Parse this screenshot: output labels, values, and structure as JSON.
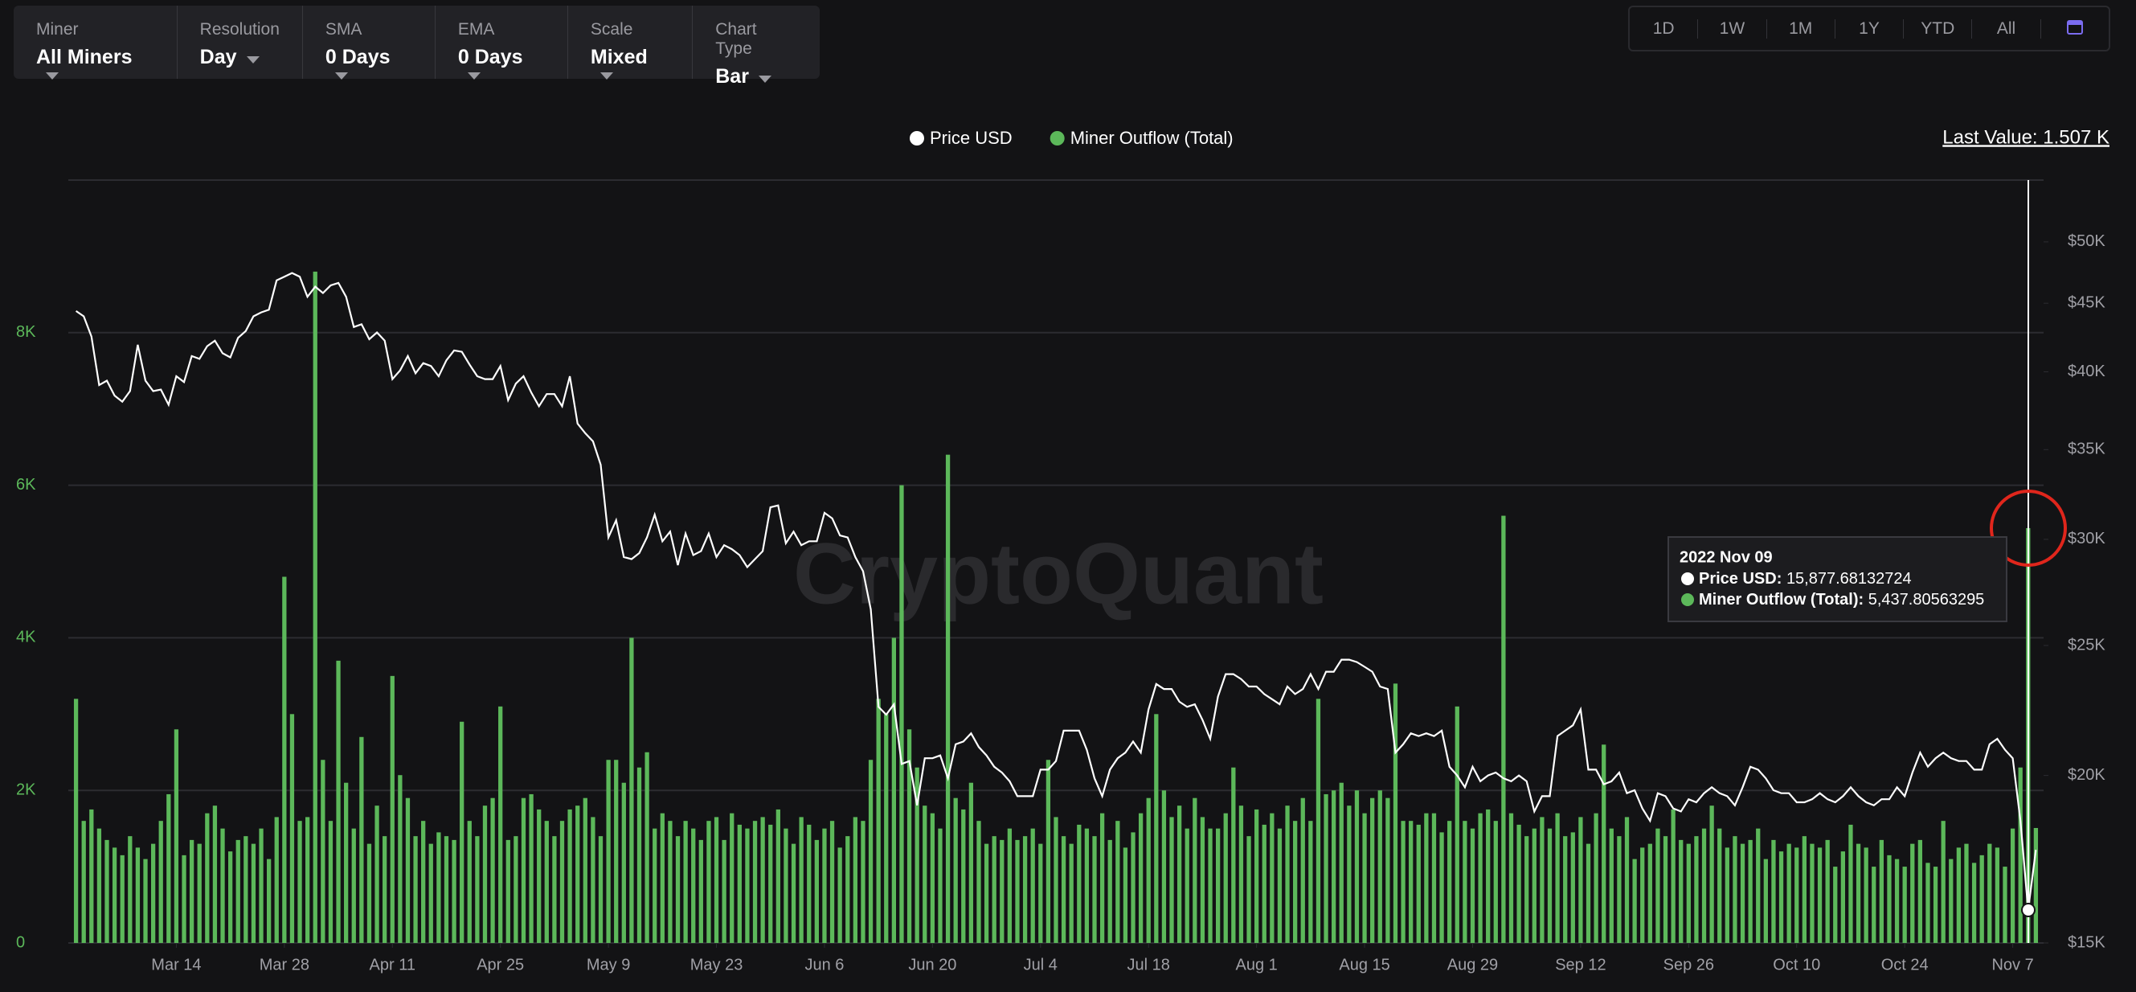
{
  "toolbar": {
    "controls": [
      {
        "label": "Miner",
        "value": "All Miners"
      },
      {
        "label": "Resolution",
        "value": "Day"
      },
      {
        "label": "SMA",
        "value": "0 Days"
      },
      {
        "label": "EMA",
        "value": "0 Days"
      },
      {
        "label": "Scale",
        "value": "Mixed"
      },
      {
        "label": "Chart Type",
        "value": "Bar"
      }
    ],
    "ranges": [
      "1D",
      "1W",
      "1M",
      "1Y",
      "YTD",
      "All"
    ]
  },
  "chart_data": {
    "type": "bar",
    "watermark": "CryptoQuant",
    "last_value": "Last Value: 1.507 K",
    "tooltip": {
      "date": "2022 Nov 09",
      "rows": [
        {
          "label": "Price USD:",
          "value": "15,877.68132724"
        },
        {
          "label": "Miner Outflow (Total):",
          "value": "5,437.80563295"
        }
      ]
    },
    "x": [
      "2022-03-01",
      "2022-03-02",
      "2022-03-03",
      "2022-03-04",
      "2022-03-05",
      "2022-03-06",
      "2022-03-07",
      "2022-03-08",
      "2022-03-09",
      "2022-03-10",
      "2022-03-11",
      "2022-03-12",
      "2022-03-13",
      "2022-03-14",
      "2022-03-15",
      "2022-03-16",
      "2022-03-17",
      "2022-03-18",
      "2022-03-19",
      "2022-03-20",
      "2022-03-21",
      "2022-03-22",
      "2022-03-23",
      "2022-03-24",
      "2022-03-25",
      "2022-03-26",
      "2022-03-27",
      "2022-03-28",
      "2022-03-29",
      "2022-03-30",
      "2022-03-31",
      "2022-04-01",
      "2022-04-02",
      "2022-04-03",
      "2022-04-04",
      "2022-04-05",
      "2022-04-06",
      "2022-04-07",
      "2022-04-08",
      "2022-04-09",
      "2022-04-10",
      "2022-04-11",
      "2022-04-12",
      "2022-04-13",
      "2022-04-14",
      "2022-04-15",
      "2022-04-16",
      "2022-04-17",
      "2022-04-18",
      "2022-04-19",
      "2022-04-20",
      "2022-04-21",
      "2022-04-22",
      "2022-04-23",
      "2022-04-24",
      "2022-04-25",
      "2022-04-26",
      "2022-04-27",
      "2022-04-28",
      "2022-04-29",
      "2022-04-30",
      "2022-05-01",
      "2022-05-02",
      "2022-05-03",
      "2022-05-04",
      "2022-05-05",
      "2022-05-06",
      "2022-05-07",
      "2022-05-08",
      "2022-05-09",
      "2022-05-10",
      "2022-05-11",
      "2022-05-12",
      "2022-05-13",
      "2022-05-14",
      "2022-05-15",
      "2022-05-16",
      "2022-05-17",
      "2022-05-18",
      "2022-05-19",
      "2022-05-20",
      "2022-05-21",
      "2022-05-22",
      "2022-05-23",
      "2022-05-24",
      "2022-05-25",
      "2022-05-26",
      "2022-05-27",
      "2022-05-28",
      "2022-05-29",
      "2022-05-30",
      "2022-05-31",
      "2022-06-01",
      "2022-06-02",
      "2022-06-03",
      "2022-06-04",
      "2022-06-05",
      "2022-06-06",
      "2022-06-07",
      "2022-06-08",
      "2022-06-09",
      "2022-06-10",
      "2022-06-11",
      "2022-06-12",
      "2022-06-13",
      "2022-06-14",
      "2022-06-15",
      "2022-06-16",
      "2022-06-17",
      "2022-06-18",
      "2022-06-19",
      "2022-06-20",
      "2022-06-21",
      "2022-06-22",
      "2022-06-23",
      "2022-06-24",
      "2022-06-25",
      "2022-06-26",
      "2022-06-27",
      "2022-06-28",
      "2022-06-29",
      "2022-06-30",
      "2022-07-01",
      "2022-07-02",
      "2022-07-03",
      "2022-07-04",
      "2022-07-05",
      "2022-07-06",
      "2022-07-07",
      "2022-07-08",
      "2022-07-09",
      "2022-07-10",
      "2022-07-11",
      "2022-07-12",
      "2022-07-13",
      "2022-07-14",
      "2022-07-15",
      "2022-07-16",
      "2022-07-17",
      "2022-07-18",
      "2022-07-19",
      "2022-07-20",
      "2022-07-21",
      "2022-07-22",
      "2022-07-23",
      "2022-07-24",
      "2022-07-25",
      "2022-07-26",
      "2022-07-27",
      "2022-07-28",
      "2022-07-29",
      "2022-07-30",
      "2022-07-31",
      "2022-08-01",
      "2022-08-02",
      "2022-08-03",
      "2022-08-04",
      "2022-08-05",
      "2022-08-06",
      "2022-08-07",
      "2022-08-08",
      "2022-08-09",
      "2022-08-10",
      "2022-08-11",
      "2022-08-12",
      "2022-08-13",
      "2022-08-14",
      "2022-08-15",
      "2022-08-16",
      "2022-08-17",
      "2022-08-18",
      "2022-08-19",
      "2022-08-20",
      "2022-08-21",
      "2022-08-22",
      "2022-08-23",
      "2022-08-24",
      "2022-08-25",
      "2022-08-26",
      "2022-08-27",
      "2022-08-28",
      "2022-08-29",
      "2022-08-30",
      "2022-08-31",
      "2022-09-01",
      "2022-09-02",
      "2022-09-03",
      "2022-09-04",
      "2022-09-05",
      "2022-09-06",
      "2022-09-07",
      "2022-09-08",
      "2022-09-09",
      "2022-09-10",
      "2022-09-11",
      "2022-09-12",
      "2022-09-13",
      "2022-09-14",
      "2022-09-15",
      "2022-09-16",
      "2022-09-17",
      "2022-09-18",
      "2022-09-19",
      "2022-09-20",
      "2022-09-21",
      "2022-09-22",
      "2022-09-23",
      "2022-09-24",
      "2022-09-25",
      "2022-09-26",
      "2022-09-27",
      "2022-09-28",
      "2022-09-29",
      "2022-09-30",
      "2022-10-01",
      "2022-10-02",
      "2022-10-03",
      "2022-10-04",
      "2022-10-05",
      "2022-10-06",
      "2022-10-07",
      "2022-10-08",
      "2022-10-09",
      "2022-10-10",
      "2022-10-11",
      "2022-10-12",
      "2022-10-13",
      "2022-10-14",
      "2022-10-15",
      "2022-10-16",
      "2022-10-17",
      "2022-10-18",
      "2022-10-19",
      "2022-10-20",
      "2022-10-21",
      "2022-10-22",
      "2022-10-23",
      "2022-10-24",
      "2022-10-25",
      "2022-10-26",
      "2022-10-27",
      "2022-10-28",
      "2022-10-29",
      "2022-10-30",
      "2022-10-31",
      "2022-11-01",
      "2022-11-02",
      "2022-11-03",
      "2022-11-04",
      "2022-11-05",
      "2022-11-06",
      "2022-11-07",
      "2022-11-08",
      "2022-11-09",
      "2022-11-10"
    ],
    "series": [
      {
        "name": "Price USD",
        "type": "line",
        "axis": "y2",
        "color": "#ffffff",
        "values": [
          44400,
          44000,
          42500,
          39100,
          39400,
          38400,
          38000,
          38700,
          41900,
          39400,
          38700,
          38800,
          37800,
          39700,
          39300,
          41100,
          40900,
          41800,
          42200,
          41300,
          41000,
          42400,
          42900,
          44000,
          44300,
          44500,
          46800,
          47100,
          47400,
          47100,
          45500,
          46300,
          45800,
          46400,
          46600,
          45500,
          43200,
          43400,
          42300,
          42800,
          42200,
          39500,
          40100,
          41100,
          39900,
          40600,
          40400,
          39700,
          40800,
          41500,
          41400,
          40500,
          39700,
          39500,
          39500,
          40400,
          38100,
          39200,
          39700,
          38600,
          37700,
          38500,
          38500,
          37700,
          39700,
          36600,
          36000,
          35500,
          34100,
          30100,
          31000,
          29100,
          29000,
          29300,
          30100,
          31300,
          29900,
          30400,
          28700,
          30300,
          29200,
          29400,
          30300,
          29100,
          29700,
          29500,
          29200,
          28600,
          29000,
          29400,
          31700,
          31800,
          29800,
          30400,
          29700,
          29900,
          29900,
          31400,
          31100,
          30200,
          30100,
          29100,
          28400,
          26600,
          22500,
          22200,
          22600,
          20400,
          20500,
          19000,
          20600,
          20600,
          20700,
          19900,
          21100,
          21200,
          21500,
          21000,
          20700,
          20300,
          20100,
          19800,
          19300,
          19300,
          19300,
          20200,
          20200,
          20500,
          21600,
          21600,
          21600,
          20900,
          19900,
          19300,
          20200,
          20600,
          20800,
          21200,
          20800,
          22400,
          23400,
          23200,
          23200,
          22700,
          22500,
          22600,
          22000,
          21300,
          22900,
          23800,
          23800,
          23600,
          23300,
          23300,
          23000,
          22800,
          22600,
          23300,
          23000,
          23200,
          23800,
          23200,
          23900,
          23900,
          24400,
          24400,
          24300,
          24100,
          23900,
          23300,
          23200,
          20800,
          21100,
          21500,
          21400,
          21500,
          21400,
          21600,
          20300,
          20000,
          19600,
          20300,
          19800,
          20000,
          20100,
          19900,
          19800,
          20000,
          19800,
          18800,
          19300,
          19300,
          21400,
          21600,
          21800,
          22400,
          20200,
          20200,
          19700,
          19800,
          20100,
          19400,
          19500,
          18900,
          18500,
          19400,
          19300,
          18900,
          18800,
          19200,
          19100,
          19400,
          19600,
          19400,
          19300,
          19000,
          19600,
          20300,
          20200,
          19900,
          19500,
          19400,
          19400,
          19100,
          19100,
          19200,
          19400,
          19200,
          19100,
          19300,
          19600,
          19300,
          19100,
          19000,
          19200,
          19200,
          19600,
          19300,
          20100,
          20800,
          20300,
          20600,
          20800,
          20600,
          20500,
          20500,
          20200,
          20200,
          21100,
          21300,
          20900,
          20600,
          18500,
          15877.68132724,
          17600
        ]
      },
      {
        "name": "Miner Outflow (Total)",
        "type": "bar",
        "color": "#5cb85a",
        "values": [
          3200,
          1600,
          1750,
          1500,
          1350,
          1250,
          1150,
          1400,
          1250,
          1100,
          1300,
          1600,
          1950,
          2800,
          1150,
          1350,
          1300,
          1700,
          1800,
          1500,
          1200,
          1350,
          1400,
          1300,
          1500,
          1100,
          1650,
          4800,
          3000,
          1600,
          1650,
          8800,
          2400,
          1600,
          3700,
          2100,
          1500,
          2700,
          1300,
          1800,
          1400,
          3500,
          2200,
          1900,
          1400,
          1600,
          1300,
          1450,
          1400,
          1350,
          2900,
          1600,
          1400,
          1800,
          1900,
          3100,
          1350,
          1400,
          1900,
          1950,
          1750,
          1600,
          1400,
          1600,
          1750,
          1800,
          1900,
          1650,
          1400,
          2400,
          2400,
          2100,
          4000,
          2300,
          2500,
          1500,
          1700,
          1600,
          1400,
          1600,
          1500,
          1350,
          1600,
          1650,
          1350,
          1700,
          1550,
          1500,
          1600,
          1650,
          1550,
          1750,
          1500,
          1300,
          1650,
          1550,
          1350,
          1500,
          1600,
          1250,
          1400,
          1650,
          1600,
          2400,
          3200,
          3000,
          4000,
          6000,
          2800,
          2300,
          1800,
          1700,
          1500,
          6400,
          1900,
          1750,
          2100,
          1600,
          1300,
          1400,
          1350,
          1500,
          1350,
          1400,
          1500,
          1300,
          2400,
          1650,
          1400,
          1300,
          1550,
          1500,
          1400,
          1700,
          1350,
          1600,
          1250,
          1450,
          1700,
          1900,
          3000,
          2000,
          1650,
          1800,
          1500,
          1900,
          1650,
          1500,
          1500,
          1700,
          2300,
          1800,
          1400,
          1750,
          1550,
          1700,
          1500,
          1800,
          1600,
          1900,
          1600,
          3200,
          1950,
          2000,
          2100,
          1800,
          2000,
          1700,
          1900,
          2000,
          1900,
          3400,
          1600,
          1600,
          1550,
          1700,
          1700,
          1450,
          1600,
          3100,
          1600,
          1500,
          1700,
          1750,
          1600,
          5600,
          1700,
          1550,
          1400,
          1500,
          1650,
          1500,
          1700,
          1400,
          1450,
          1650,
          1300,
          1700,
          2600,
          1500,
          1400,
          1650,
          1100,
          1250,
          1300,
          1500,
          1400,
          1750,
          1350,
          1300,
          1400,
          1500,
          1800,
          1500,
          1250,
          1400,
          1300,
          1350,
          1500,
          1100,
          1350,
          1200,
          1300,
          1250,
          1400,
          1300,
          1250,
          1350,
          1000,
          1200,
          1550,
          1300,
          1250,
          1000,
          1350,
          1150,
          1100,
          1000,
          1300,
          1350,
          1050,
          1000,
          1600,
          1100,
          1250,
          1300,
          1050,
          1150,
          1300,
          1250,
          1000,
          1500,
          2300,
          5437.80563295,
          1507
        ]
      }
    ],
    "xlim": [
      "2022-02-28",
      "2022-11-11"
    ],
    "xticks": [
      {
        "value": "2022-03-14",
        "label": "Mar 14"
      },
      {
        "value": "2022-03-28",
        "label": "Mar 28"
      },
      {
        "value": "2022-04-11",
        "label": "Apr 11"
      },
      {
        "value": "2022-04-25",
        "label": "Apr 25"
      },
      {
        "value": "2022-05-09",
        "label": "May 9"
      },
      {
        "value": "2022-05-23",
        "label": "May 23"
      },
      {
        "value": "2022-06-06",
        "label": "Jun 6"
      },
      {
        "value": "2022-06-20",
        "label": "Jun 20"
      },
      {
        "value": "2022-07-04",
        "label": "Jul 4"
      },
      {
        "value": "2022-07-18",
        "label": "Jul 18"
      },
      {
        "value": "2022-08-01",
        "label": "Aug 1"
      },
      {
        "value": "2022-08-15",
        "label": "Aug 15"
      },
      {
        "value": "2022-08-29",
        "label": "Aug 29"
      },
      {
        "value": "2022-09-12",
        "label": "Sep 12"
      },
      {
        "value": "2022-09-26",
        "label": "Sep 26"
      },
      {
        "value": "2022-10-10",
        "label": "Oct 10"
      },
      {
        "value": "2022-10-24",
        "label": "Oct 24"
      },
      {
        "value": "2022-11-07",
        "label": "Nov 7"
      }
    ],
    "ylim": [
      0,
      10000
    ],
    "yticks": [
      0,
      {
        "value": 2000,
        "label": "2K"
      },
      {
        "value": 4000,
        "label": "4K"
      },
      {
        "value": 6000,
        "label": "6K"
      },
      {
        "value": 8000,
        "label": "8K"
      }
    ],
    "y2lim": [
      15000,
      55600
    ],
    "y2scale": "log",
    "y2ticks": [
      {
        "value": 15000,
        "label": "$15K"
      },
      {
        "value": 20000,
        "label": "$20K"
      },
      {
        "value": 25000,
        "label": "$25K"
      },
      {
        "value": 30000,
        "label": "$30K"
      },
      {
        "value": 35000,
        "label": "$35K"
      },
      {
        "value": 40000,
        "label": "$40K"
      },
      {
        "value": 45000,
        "label": "$45K"
      },
      {
        "value": 50000,
        "label": "$50K"
      }
    ],
    "grid": true
  }
}
